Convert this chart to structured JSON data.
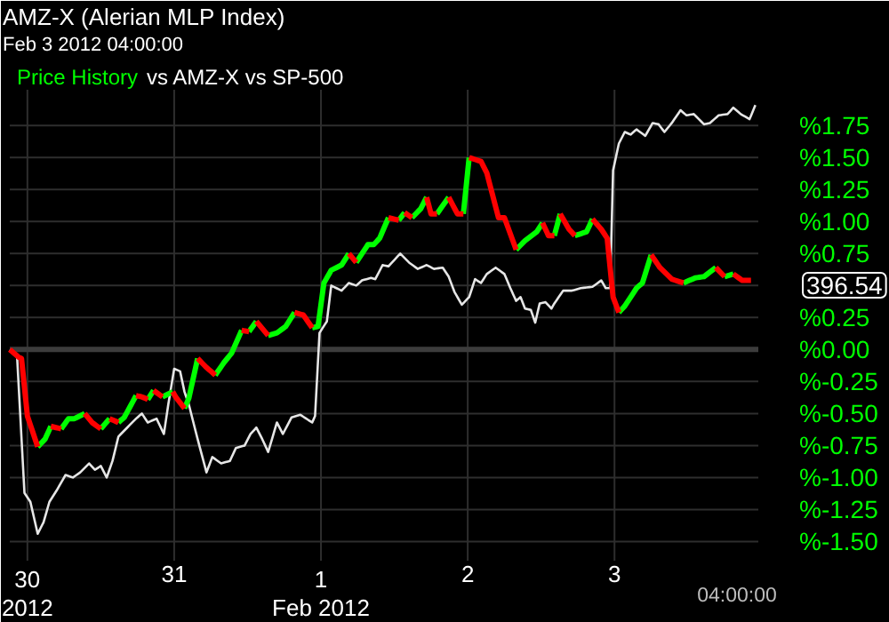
{
  "chart_data": {
    "type": "line",
    "title": "AMZ-X (Alerian MLP Index)",
    "subtitle": "Feb 3 2012 04:00:00",
    "xlim": [
      "2012-01-29T21:07",
      "2012-02-03T23:31"
    ],
    "xticks": [
      {
        "value": "2012-01-30",
        "label": "30\n2012"
      },
      {
        "value": "2012-01-31",
        "label": "31"
      },
      {
        "value": "2012-02-01",
        "label": "1\nFeb 2012"
      },
      {
        "value": "2012-02-02",
        "label": "2"
      },
      {
        "value": "2012-02-03",
        "label": "3"
      }
    ],
    "ylim": [
      -1.65,
      2.03
    ],
    "yticks": [
      {
        "value": -1.5,
        "label": "%-1.50"
      },
      {
        "value": -1.25,
        "label": "%-1.25"
      },
      {
        "value": -1.0,
        "label": "%-1.00"
      },
      {
        "value": -0.75,
        "label": "%-0.75"
      },
      {
        "value": -0.5,
        "label": "%-0.50"
      },
      {
        "value": -0.25,
        "label": "%-0.25"
      },
      {
        "value": 0,
        "label": "%0.00"
      },
      {
        "value": 0.25,
        "label": "%0.25"
      },
      {
        "value": 0.5,
        "label": null
      },
      {
        "value": 0.75,
        "label": "%0.75"
      },
      {
        "value": 1.0,
        "label": "%1.00"
      },
      {
        "value": 1.25,
        "label": "%1.25"
      },
      {
        "value": 1.5,
        "label": "%1.50"
      },
      {
        "value": 1.75,
        "label": "%1.75"
      }
    ],
    "grid": true,
    "legend": "top left",
    "ref_lines": [
      {
        "axis": "y",
        "value": 0,
        "color": "#3c3c3c"
      }
    ],
    "annotations": [
      "vs AMZ-X vs SP-500",
      "396.54",
      "04:00:00"
    ],
    "series": [
      {
        "color": "#e6e6e6",
        "x": [
          "2012-01-29T21:07",
          "2012-01-29T22:19",
          "2012-01-29T23:31",
          "2012-01-30T00:29",
          "2012-01-30T01:41",
          "2012-01-30T02:38",
          "2012-01-30T03:36",
          "2012-01-30T04:48",
          "2012-01-30T06:14",
          "2012-01-30T07:26",
          "2012-01-30T08:38",
          "2012-01-30T10:05",
          "2012-01-30T11:02",
          "2012-01-30T12:00",
          "2012-01-30T12:58",
          "2012-01-30T13:55",
          "2012-01-30T14:53",
          "2012-01-30T16:19",
          "2012-01-30T17:46",
          "2012-01-30T18:43",
          "2012-01-30T19:41",
          "2012-01-30T21:07",
          "2012-01-30T22:19",
          "2012-01-30T23:02",
          "2012-01-31T00:00",
          "2012-01-31T00:58",
          "2012-01-31T01:41",
          "2012-01-31T02:24",
          "2012-01-31T03:50",
          "2012-01-31T05:17",
          "2012-01-31T06:14",
          "2012-01-31T07:41",
          "2012-01-31T09:07",
          "2012-01-31T10:05",
          "2012-01-31T11:31",
          "2012-01-31T12:29",
          "2012-01-31T13:26",
          "2012-01-31T14:24",
          "2012-01-31T15:22",
          "2012-01-31T16:48",
          "2012-01-31T17:46",
          "2012-01-31T19:12",
          "2012-01-31T20:38",
          "2012-01-31T21:36",
          "2012-01-31T22:34",
          "2012-01-31T23:02",
          "2012-01-31T23:46",
          "2012-02-01T00:58",
          "2012-02-01T01:41",
          "2012-02-01T03:22",
          "2012-02-01T04:34",
          "2012-02-01T05:46",
          "2012-02-01T06:43",
          "2012-02-01T08:10",
          "2012-02-01T08:53",
          "2012-02-01T10:05",
          "2012-02-01T11:02",
          "2012-02-01T12:58",
          "2012-02-01T14:24",
          "2012-02-01T15:50",
          "2012-02-01T17:17",
          "2012-02-01T18:29",
          "2012-02-01T19:55",
          "2012-02-01T20:53",
          "2012-02-01T21:50",
          "2012-02-01T23:02",
          "2012-02-02T00:14",
          "2012-02-02T01:12",
          "2012-02-02T02:10",
          "2012-02-02T03:07",
          "2012-02-02T04:34",
          "2012-02-02T06:00",
          "2012-02-02T06:58",
          "2012-02-02T07:55",
          "2012-02-02T08:38",
          "2012-02-02T09:22",
          "2012-02-02T10:19",
          "2012-02-02T11:02",
          "2012-02-02T11:46",
          "2012-02-02T12:43",
          "2012-02-02T13:41",
          "2012-02-02T14:10",
          "2012-02-02T15:36",
          "2012-02-02T17:02",
          "2012-02-02T18:29",
          "2012-02-02T20:24",
          "2012-02-02T21:50",
          "2012-02-02T22:34",
          "2012-02-02T23:17",
          "2012-02-02T23:46",
          "2012-02-03T00:43",
          "2012-02-03T01:41",
          "2012-02-03T02:38",
          "2012-02-03T03:36",
          "2012-02-03T05:02",
          "2012-02-03T06:14",
          "2012-02-03T07:12",
          "2012-02-03T08:10",
          "2012-02-03T09:22",
          "2012-02-03T10:48",
          "2012-02-03T11:46",
          "2012-02-03T12:58",
          "2012-02-03T14:38",
          "2012-02-03T15:36",
          "2012-02-03T17:02",
          "2012-02-03T18:29",
          "2012-02-03T19:26",
          "2012-02-03T20:38",
          "2012-02-03T22:05",
          "2012-02-03T23:02"
        ],
        "values": [
          0.0,
          -0.06,
          -1.12,
          -1.19,
          -1.44,
          -1.35,
          -1.19,
          -1.1,
          -0.98,
          -1.0,
          -0.96,
          -0.89,
          -0.94,
          -0.91,
          -1.0,
          -0.87,
          -0.68,
          -0.61,
          -0.54,
          -0.5,
          -0.57,
          -0.54,
          -0.66,
          -0.43,
          -0.15,
          -0.17,
          -0.33,
          -0.43,
          -0.7,
          -0.96,
          -0.84,
          -0.89,
          -0.87,
          -0.77,
          -0.75,
          -0.66,
          -0.61,
          -0.7,
          -0.8,
          -0.57,
          -0.66,
          -0.53,
          -0.51,
          -0.54,
          -0.57,
          -0.52,
          0.13,
          0.22,
          0.5,
          0.46,
          0.52,
          0.5,
          0.54,
          0.56,
          0.55,
          0.66,
          0.65,
          0.75,
          0.68,
          0.63,
          0.66,
          0.63,
          0.64,
          0.57,
          0.45,
          0.35,
          0.41,
          0.55,
          0.52,
          0.59,
          0.64,
          0.59,
          0.48,
          0.38,
          0.41,
          0.32,
          0.31,
          0.21,
          0.36,
          0.37,
          0.32,
          0.36,
          0.46,
          0.46,
          0.48,
          0.49,
          0.54,
          0.48,
          0.48,
          1.4,
          1.61,
          1.7,
          1.68,
          1.72,
          1.67,
          1.77,
          1.76,
          1.7,
          1.77,
          1.87,
          1.83,
          1.84,
          1.76,
          1.77,
          1.83,
          1.84,
          1.89,
          1.84,
          1.8,
          1.91
        ]
      },
      {
        "name": "Price History",
        "color": "#00ff00",
        "x": [
          "2012-01-30T01:41",
          "2012-01-30T02:53",
          "2012-01-30T03:50",
          null,
          "2012-01-30T05:31",
          "2012-01-30T06:43",
          "2012-01-30T07:41",
          "2012-01-30T09:22",
          null,
          "2012-01-30T12:00",
          "2012-01-30T13:26",
          null,
          "2012-01-30T14:53",
          "2012-01-30T15:50",
          "2012-01-30T17:46",
          null,
          "2012-01-30T19:41",
          "2012-01-30T20:38",
          null,
          "2012-01-30T22:05",
          "2012-01-30T23:46",
          null,
          "2012-01-31T01:41",
          "2012-01-31T02:24",
          "2012-01-31T03:50",
          null,
          "2012-01-31T06:43",
          "2012-01-31T08:10",
          "2012-01-31T09:22",
          "2012-01-31T11:02",
          null,
          "2012-01-31T12:14",
          "2012-01-31T13:26",
          null,
          "2012-01-31T15:22",
          "2012-01-31T16:48",
          "2012-01-31T18:14",
          "2012-01-31T19:41",
          null,
          "2012-01-31T22:34",
          "2012-01-31T23:31",
          "2012-02-01T00:29",
          "2012-02-01T01:41",
          "2012-02-01T03:22",
          "2012-02-01T04:34",
          null,
          "2012-02-01T05:46",
          "2012-02-01T06:43",
          "2012-02-01T07:41",
          "2012-02-01T08:38",
          "2012-02-01T09:36",
          "2012-02-01T11:02",
          null,
          "2012-02-01T12:43",
          "2012-02-01T13:41",
          null,
          "2012-02-01T14:53",
          "2012-02-01T16:19",
          "2012-02-01T17:17",
          null,
          "2012-02-01T18:58",
          "2012-02-01T20:53",
          null,
          "2012-02-01T23:17",
          "2012-02-02T00:14",
          null,
          "2012-02-02T07:55",
          "2012-02-02T09:22",
          "2012-02-02T11:17",
          "2012-02-02T12:14",
          null,
          "2012-02-02T14:10",
          "2012-02-02T15:07",
          null,
          "2012-02-02T17:31",
          "2012-02-02T19:26",
          "2012-02-02T20:24",
          null,
          "2012-02-03T00:43",
          "2012-02-03T01:41",
          "2012-02-03T03:36",
          "2012-02-03T04:34",
          "2012-02-03T06:00",
          null,
          "2012-02-03T11:17",
          "2012-02-03T13:12",
          "2012-02-03T14:38",
          "2012-02-03T16:34",
          null,
          "2012-02-03T18:00",
          "2012-02-03T19:26"
        ],
        "values": [
          -0.76,
          -0.7,
          -0.6,
          null,
          -0.62,
          -0.54,
          -0.54,
          -0.5,
          null,
          -0.62,
          -0.54,
          null,
          -0.57,
          -0.53,
          -0.36,
          null,
          -0.39,
          -0.32,
          null,
          -0.37,
          -0.33,
          null,
          -0.46,
          -0.38,
          -0.07,
          null,
          -0.2,
          -0.1,
          -0.03,
          0.15,
          null,
          0.14,
          0.22,
          null,
          0.11,
          0.13,
          0.18,
          0.29,
          null,
          0.17,
          0.18,
          0.52,
          0.62,
          0.66,
          0.75,
          null,
          0.68,
          0.75,
          0.82,
          0.82,
          0.87,
          1.03,
          null,
          1.01,
          1.07,
          null,
          1.03,
          1.1,
          1.19,
          null,
          1.06,
          1.19,
          null,
          1.06,
          1.5,
          null,
          0.78,
          0.85,
          0.92,
          0.99,
          null,
          0.89,
          1.06,
          null,
          0.89,
          0.92,
          1.02,
          null,
          0.29,
          0.34,
          0.48,
          0.52,
          0.74,
          null,
          0.52,
          0.56,
          0.57,
          0.64,
          null,
          0.57,
          0.59
        ]
      },
      {
        "color": "#ff0000",
        "x": [
          "2012-01-29T21:07",
          "2012-01-29T22:34",
          "2012-01-29T23:02",
          "2012-01-30T00:00",
          "2012-01-30T01:41",
          null,
          "2012-01-30T03:50",
          "2012-01-30T05:31",
          null,
          "2012-01-30T09:22",
          "2012-01-30T10:34",
          "2012-01-30T12:00",
          null,
          "2012-01-30T13:26",
          "2012-01-30T14:53",
          null,
          "2012-01-30T17:46",
          "2012-01-30T18:43",
          "2012-01-30T19:41",
          null,
          "2012-01-30T20:38",
          "2012-01-30T22:05",
          null,
          "2012-01-30T23:46",
          "2012-01-31T00:14",
          "2012-01-31T01:12",
          "2012-01-31T01:41",
          null,
          "2012-01-31T03:50",
          "2012-01-31T05:17",
          "2012-01-31T06:43",
          null,
          "2012-01-31T11:02",
          "2012-01-31T12:14",
          null,
          "2012-01-31T13:26",
          "2012-01-31T15:22",
          null,
          "2012-01-31T19:41",
          "2012-01-31T21:07",
          "2012-01-31T22:34",
          null,
          "2012-02-01T04:34",
          "2012-02-01T05:46",
          null,
          "2012-02-01T11:02",
          "2012-02-01T12:43",
          null,
          "2012-02-01T13:41",
          "2012-02-01T14:53",
          null,
          "2012-02-01T17:17",
          "2012-02-01T18:00",
          "2012-02-01T18:58",
          null,
          "2012-02-01T20:53",
          "2012-02-01T22:19",
          "2012-02-01T23:17",
          null,
          "2012-02-02T00:14",
          "2012-02-02T02:10",
          "2012-02-02T03:07",
          "2012-02-02T05:02",
          "2012-02-02T06:00",
          "2012-02-02T07:55",
          null,
          "2012-02-02T12:14",
          "2012-02-02T13:12",
          "2012-02-02T14:10",
          null,
          "2012-02-02T15:07",
          "2012-02-02T16:34",
          "2012-02-02T17:31",
          null,
          "2012-02-02T20:24",
          "2012-02-02T21:50",
          "2012-02-02T22:48",
          "2012-02-02T23:46",
          "2012-02-03T00:43",
          null,
          "2012-02-03T06:00",
          "2012-02-03T07:26",
          "2012-02-03T09:22",
          "2012-02-03T11:17",
          null,
          "2012-02-03T16:34",
          "2012-02-03T18:00",
          null,
          "2012-02-03T19:26",
          "2012-02-03T20:53",
          "2012-02-03T22:19"
        ],
        "values": [
          0.0,
          -0.06,
          -0.07,
          -0.52,
          -0.76,
          null,
          -0.6,
          -0.62,
          null,
          -0.5,
          -0.57,
          -0.62,
          null,
          -0.54,
          -0.57,
          null,
          -0.36,
          -0.37,
          -0.39,
          null,
          -0.32,
          -0.37,
          null,
          -0.33,
          -0.37,
          -0.43,
          -0.46,
          null,
          -0.07,
          -0.14,
          -0.2,
          null,
          0.15,
          0.14,
          null,
          0.22,
          0.11,
          null,
          0.29,
          0.27,
          0.17,
          null,
          0.75,
          0.68,
          null,
          1.03,
          1.01,
          null,
          1.07,
          1.03,
          null,
          1.19,
          1.06,
          1.06,
          null,
          1.19,
          1.06,
          1.06,
          null,
          1.5,
          1.47,
          1.38,
          1.03,
          1.03,
          0.78,
          null,
          0.99,
          0.89,
          0.89,
          null,
          1.06,
          0.94,
          0.89,
          null,
          1.02,
          0.94,
          0.87,
          0.41,
          0.29,
          null,
          0.74,
          0.64,
          0.55,
          0.52,
          null,
          0.64,
          0.57,
          null,
          0.59,
          0.54,
          0.54
        ]
      }
    ]
  }
}
